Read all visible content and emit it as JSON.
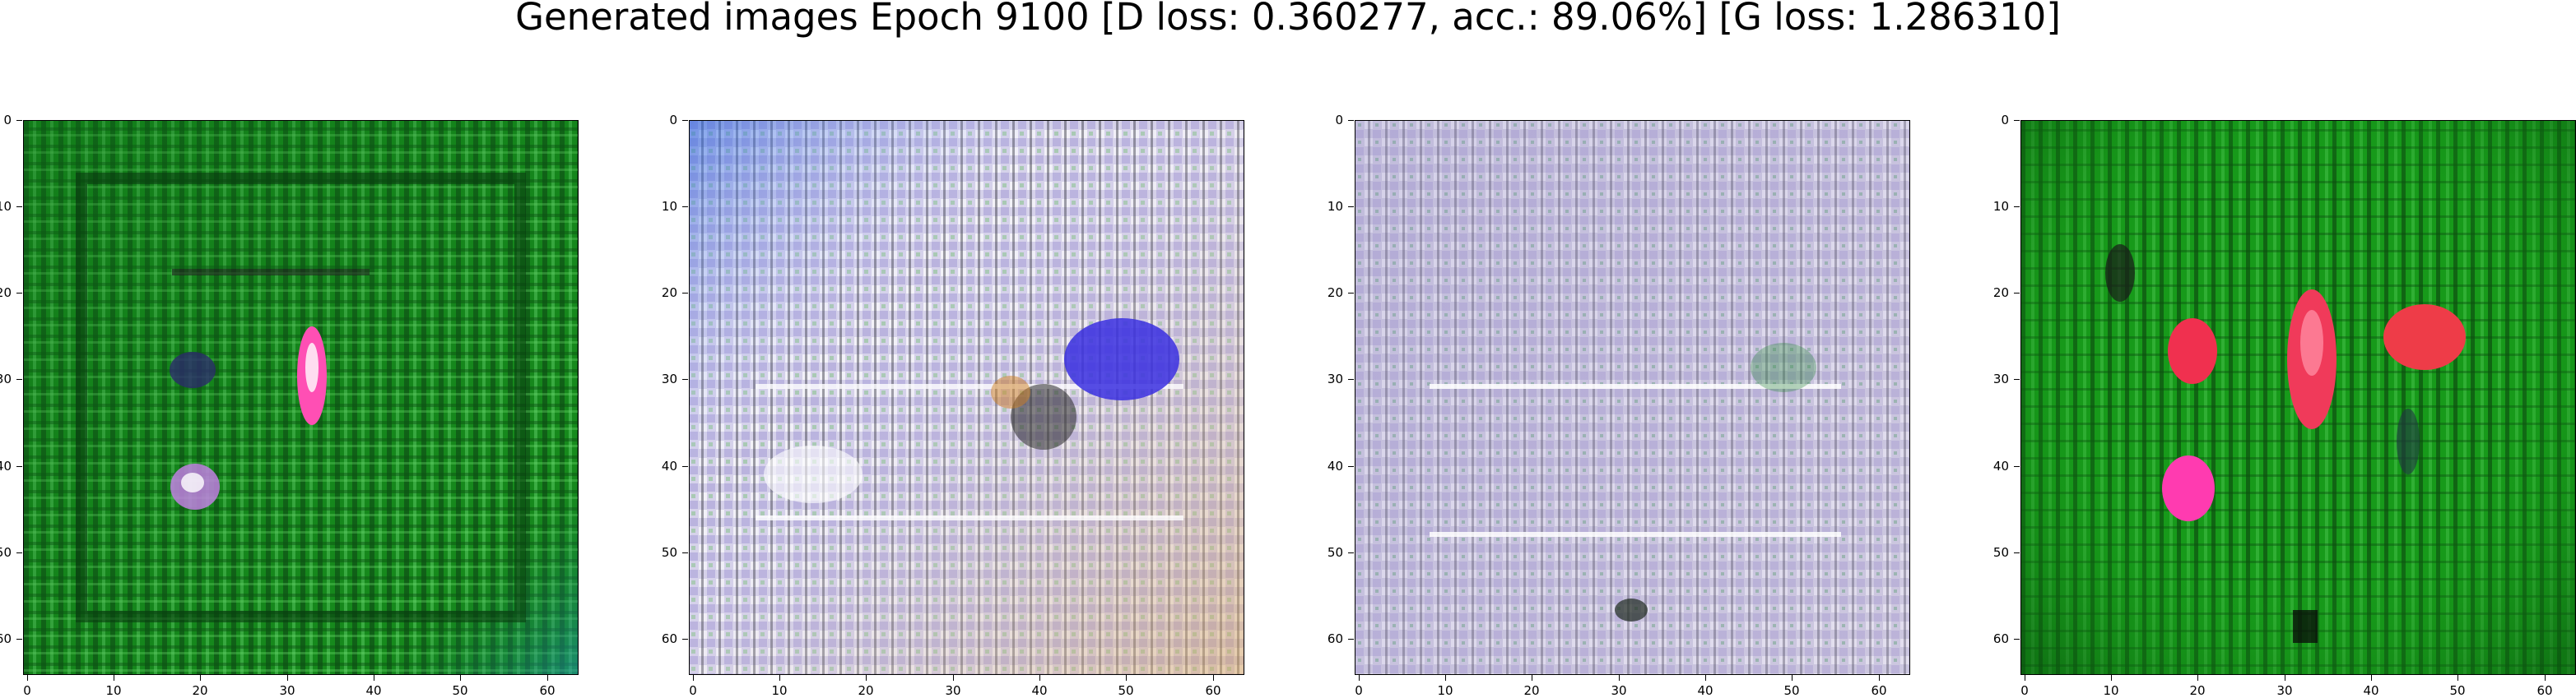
{
  "figure": {
    "title": "Generated images Epoch 9100 [D loss: 0.360277, acc.: 89.06%] [G loss: 1.286310]"
  },
  "axes_ticks": {
    "x": [
      "0",
      "10",
      "20",
      "30",
      "40",
      "50",
      "60"
    ],
    "y": [
      "0",
      "10",
      "20",
      "30",
      "40",
      "50",
      "60"
    ]
  },
  "images": [
    {
      "name": "generated-sample-1",
      "palette": "green",
      "base": "#1d8f22",
      "accent": "#ff4fb4"
    },
    {
      "name": "generated-sample-2",
      "palette": "pale-noisy",
      "base": "#d8d4e8",
      "accent": "#3a2fe0"
    },
    {
      "name": "generated-sample-3",
      "palette": "pale-noisy",
      "base": "#d4d2e0",
      "accent": "#3aa34a"
    },
    {
      "name": "generated-sample-4",
      "palette": "green",
      "base": "#1a9a1c",
      "accent": "#f03a5a"
    }
  ]
}
